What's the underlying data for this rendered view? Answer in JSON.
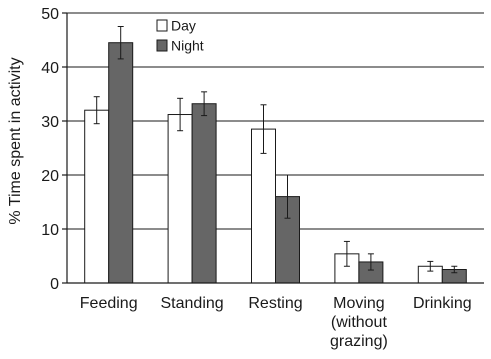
{
  "chart_data": {
    "type": "bar",
    "title": "",
    "xlabel": "",
    "ylabel": "% Time spent in activity",
    "ylim": [
      0,
      50
    ],
    "yticks": [
      0,
      10,
      20,
      30,
      40,
      50
    ],
    "grid": true,
    "legend_position": "top-left",
    "categories": [
      [
        "Feeding"
      ],
      [
        "Standing"
      ],
      [
        "Resting"
      ],
      [
        "Moving",
        "(without",
        "grazing)"
      ],
      [
        "Drinking"
      ]
    ],
    "series": [
      {
        "name": "Day",
        "color": "#ffffff",
        "values": [
          32,
          31.2,
          28.5,
          5.4,
          3.1
        ],
        "errors": [
          2.5,
          3.0,
          4.5,
          2.3,
          0.9
        ]
      },
      {
        "name": "Night",
        "color": "#666666",
        "values": [
          44.5,
          33.2,
          16,
          3.9,
          2.5
        ],
        "errors": [
          3.0,
          2.2,
          4.0,
          1.5,
          0.6
        ]
      }
    ]
  }
}
